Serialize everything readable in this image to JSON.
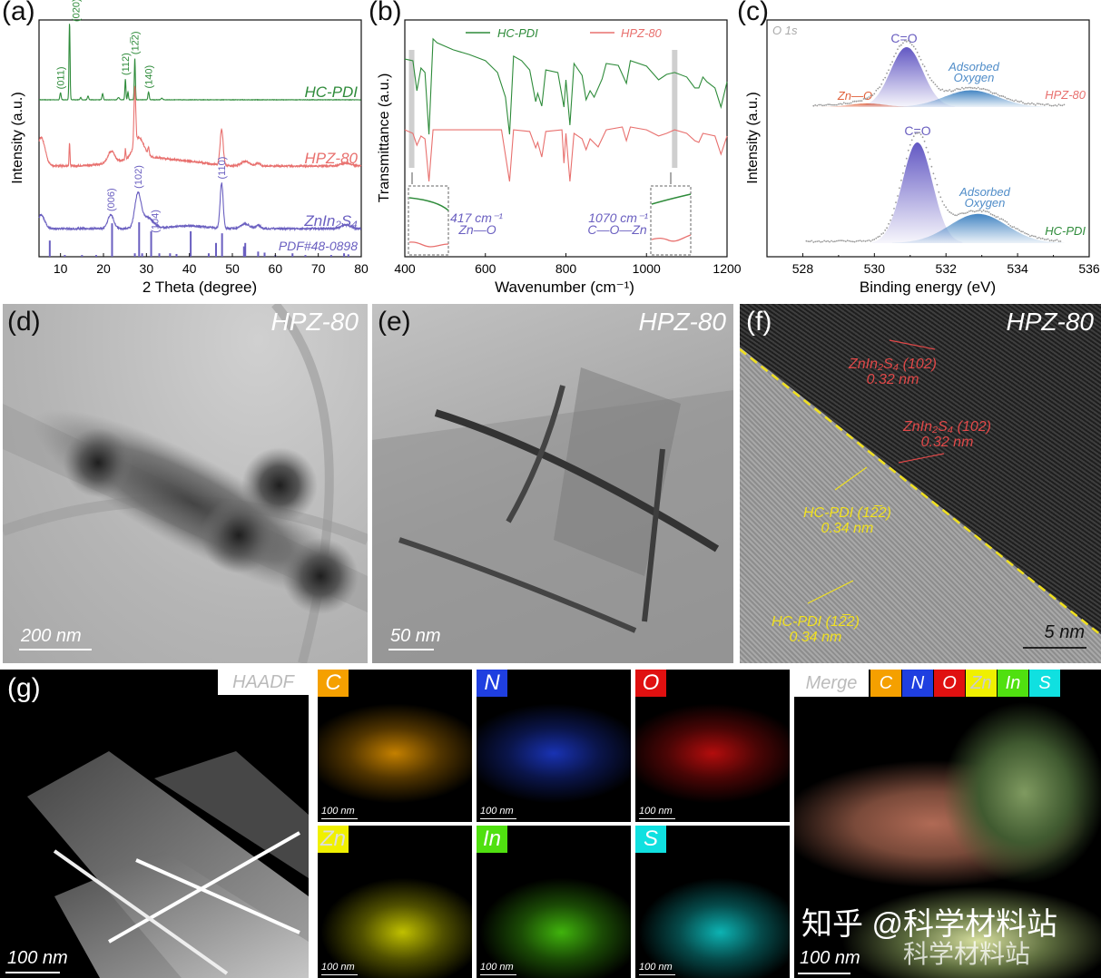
{
  "panels": {
    "a": "(a)",
    "b": "(b)",
    "c": "(c)",
    "d": "(d)",
    "e": "(e)",
    "f": "(f)",
    "g": "(g)"
  },
  "chart_data": [
    {
      "type": "line",
      "title": "",
      "xlabel": "2 Theta (degree)",
      "ylabel": "Intensity (a.u.)",
      "xlim": [
        5,
        80
      ],
      "xticks": [
        10,
        20,
        30,
        40,
        50,
        60,
        70,
        80
      ],
      "grid": false,
      "series": [
        {
          "name": "HC-PDI",
          "color": "#2e8b3a",
          "peaks": [
            [
              10,
              0.09,
              0.15
            ],
            [
              12.1,
              1,
              0.12
            ],
            [
              14.7,
              0.03,
              0.15
            ],
            [
              16.4,
              0.05,
              0.15
            ],
            [
              19.8,
              0.08,
              0.15
            ],
            [
              23.5,
              0.03,
              0.2
            ],
            [
              25.1,
              0.27,
              0.12
            ],
            [
              25.7,
              0.1,
              0.12
            ],
            [
              27.3,
              0.54,
              0.12
            ],
            [
              30.5,
              0.1,
              0.15
            ],
            [
              33.6,
              0.02,
              0.2
            ]
          ]
        },
        {
          "name": "HPZ-80",
          "color": "#e8706e",
          "peaks": [
            [
              5.5,
              0.5,
              0.9
            ],
            [
              12.1,
              0.4,
              0.1
            ],
            [
              21.8,
              0.2,
              0.8
            ],
            [
              25.1,
              0.18,
              0.1
            ],
            [
              27.3,
              1,
              0.2
            ],
            [
              28.2,
              0.35,
              1.2
            ],
            [
              30.5,
              0.12,
              0.15
            ],
            [
              30,
              0.15,
              6
            ],
            [
              41,
              0.05,
              4
            ],
            [
              47.5,
              0.63,
              0.35
            ],
            [
              53,
              0.08,
              1
            ],
            [
              56,
              0.05,
              0.5
            ],
            [
              76.5,
              0.05,
              1.2
            ]
          ]
        },
        {
          "name": "ZnIn₂S₄",
          "color": "#6a5fc0",
          "peaks": [
            [
              5.5,
              0.3,
              0.8
            ],
            [
              21.7,
              0.3,
              0.7
            ],
            [
              28,
              0.7,
              0.7
            ],
            [
              30,
              0.25,
              1.5
            ],
            [
              40,
              0.06,
              4
            ],
            [
              47.5,
              1,
              0.35
            ],
            [
              53,
              0.1,
              1
            ],
            [
              56,
              0.08,
              0.5
            ],
            [
              76.5,
              0.08,
              1
            ]
          ]
        }
      ],
      "reference": {
        "name": "PDF#48-0898",
        "color": "#6a5fc0",
        "sticks": [
          [
            7.5,
            0.47
          ],
          [
            11,
            0.05
          ],
          [
            15,
            0.05
          ],
          [
            18.3,
            0.05
          ],
          [
            22,
            0.97
          ],
          [
            27.3,
            0.1
          ],
          [
            28.3,
            1
          ],
          [
            29,
            0.1
          ],
          [
            31.1,
            0.74
          ],
          [
            33,
            0.1
          ],
          [
            35.5,
            0.1
          ],
          [
            37,
            0.08
          ],
          [
            40.3,
            0.74
          ],
          [
            44.5,
            0.1
          ],
          [
            46.2,
            0.4
          ],
          [
            47.6,
            0.68
          ],
          [
            52.7,
            0.3
          ],
          [
            53,
            0.4
          ],
          [
            56,
            0.15
          ],
          [
            57.5,
            0.12
          ],
          [
            60,
            0.05
          ],
          [
            64,
            0.1
          ],
          [
            67,
            0.05
          ],
          [
            73,
            0.05
          ],
          [
            76,
            0.1
          ],
          [
            77,
            0.07
          ]
        ]
      },
      "annotations": [
        {
          "text": "(011)",
          "x": 10,
          "series": 0
        },
        {
          "text": "(020)",
          "x": 12.1,
          "series": 0
        },
        {
          "text": "(112)",
          "x": 25.1,
          "series": 0
        },
        {
          "text": "(12̅2)",
          "x": 27.3,
          "series": 0
        },
        {
          "text": "(140)",
          "x": 30.5,
          "series": 0
        },
        {
          "text": "(006)",
          "x": 21.7,
          "series": 2
        },
        {
          "text": "(102)",
          "x": 28,
          "series": 2
        },
        {
          "text": "(104)",
          "x": 30,
          "series": 2
        },
        {
          "text": "(110)",
          "x": 47.5,
          "series": 2
        }
      ]
    },
    {
      "type": "line",
      "title": "",
      "xlabel": "Wavenumber (cm⁻¹)",
      "ylabel": "Transmittance (a.u.)",
      "xlim": [
        400,
        1200
      ],
      "ylim": [
        0,
        100
      ],
      "xticks": [
        400,
        600,
        800,
        1000,
        1200
      ],
      "grid": false,
      "legend": "top",
      "series": [
        {
          "name": "HC-PDI",
          "color": "#2e8b3a",
          "points": [
            [
              400,
              83.5
            ],
            [
              420,
              82.8
            ],
            [
              430,
              70.1
            ],
            [
              440,
              79.7
            ],
            [
              450,
              77.8
            ],
            [
              460,
              51.7
            ],
            [
              470,
              92
            ],
            [
              480,
              90.4
            ],
            [
              520,
              87.4
            ],
            [
              560,
              85.4
            ],
            [
              600,
              82.8
            ],
            [
              630,
              77.8
            ],
            [
              650,
              67.4
            ],
            [
              660,
              51.7
            ],
            [
              670,
              84.7
            ],
            [
              690,
              82.8
            ],
            [
              710,
              78.9
            ],
            [
              725,
              65.5
            ],
            [
              730,
              69
            ],
            [
              740,
              63.6
            ],
            [
              750,
              78.9
            ],
            [
              780,
              77.8
            ],
            [
              795,
              63.2
            ],
            [
              800,
              74.7
            ],
            [
              810,
              55.6
            ],
            [
              820,
              81.6
            ],
            [
              840,
              76.6
            ],
            [
              850,
              66.3
            ],
            [
              860,
              70.1
            ],
            [
              870,
              67.4
            ],
            [
              890,
              75.1
            ],
            [
              900,
              81.6
            ],
            [
              930,
              80.8
            ],
            [
              950,
              73.2
            ],
            [
              960,
              82.8
            ],
            [
              1000,
              80.5
            ],
            [
              1030,
              74.7
            ],
            [
              1050,
              77
            ],
            [
              1070,
              77.8
            ],
            [
              1100,
              75.9
            ],
            [
              1120,
              71.3
            ],
            [
              1130,
              71.3
            ],
            [
              1140,
              75.9
            ],
            [
              1150,
              73.9
            ],
            [
              1170,
              71.3
            ],
            [
              1185,
              63.2
            ],
            [
              1200,
              73.9
            ]
          ]
        },
        {
          "name": "HPZ-80",
          "color": "#e8706e",
          "points": [
            [
              400,
              53.6
            ],
            [
              420,
              52.1
            ],
            [
              430,
              47.1
            ],
            [
              440,
              51
            ],
            [
              450,
              49.8
            ],
            [
              460,
              31.8
            ],
            [
              470,
              53.6
            ],
            [
              520,
              53.6
            ],
            [
              640,
              53.6
            ],
            [
              660,
              31.8
            ],
            [
              670,
              53.6
            ],
            [
              710,
              52.9
            ],
            [
              725,
              46
            ],
            [
              730,
              48.3
            ],
            [
              740,
              42.1
            ],
            [
              750,
              52.9
            ],
            [
              790,
              53.6
            ],
            [
              795,
              39.5
            ],
            [
              800,
              52.1
            ],
            [
              810,
              31.8
            ],
            [
              820,
              52.1
            ],
            [
              840,
              49.8
            ],
            [
              850,
              45.2
            ],
            [
              860,
              49.8
            ],
            [
              880,
              46.4
            ],
            [
              900,
              53.6
            ],
            [
              940,
              54.8
            ],
            [
              950,
              49
            ],
            [
              960,
              54.8
            ],
            [
              1000,
              53.6
            ],
            [
              1030,
              51
            ],
            [
              1050,
              52.1
            ],
            [
              1070,
              53.6
            ],
            [
              1100,
              52.1
            ],
            [
              1120,
              49
            ],
            [
              1130,
              48.3
            ],
            [
              1140,
              52.1
            ],
            [
              1170,
              51
            ],
            [
              1185,
              43.3
            ],
            [
              1200,
              51
            ]
          ]
        }
      ],
      "highlights": [
        417,
        1070
      ],
      "annotations": [
        {
          "text": "417 cm⁻¹",
          "sub": "Zn—O",
          "x": 417
        },
        {
          "text": "1070 cm⁻¹",
          "sub": "C—O—Zn",
          "x": 1070
        }
      ]
    },
    {
      "type": "area",
      "title": "O 1s",
      "xlabel": "Binding energy (eV)",
      "ylabel": "Intensity (a.u.)",
      "xlim": [
        527,
        536
      ],
      "xticks": [
        528,
        530,
        532,
        534,
        536
      ],
      "grid": false,
      "series": [
        {
          "name": "HPZ-80",
          "color": "#e8706e",
          "components": [
            {
              "name": "Zn—O",
              "center": 529.8,
              "height": 0.06,
              "sigma": 0.5,
              "color": "#e0603a"
            },
            {
              "name": "C=O",
              "center": 530.9,
              "height": 1.0,
              "sigma": 0.45,
              "color": "#5a4fc0"
            },
            {
              "name": "Adsorbed Oxygen",
              "center": 532.7,
              "height": 0.28,
              "sigma": 0.75,
              "color": "#3a7fc0"
            }
          ]
        },
        {
          "name": "HC-PDI",
          "color": "#2e8b3a",
          "components": [
            {
              "name": "C=O",
              "center": 531.2,
              "height": 1.0,
              "sigma": 0.42,
              "color": "#5a4fc0"
            },
            {
              "name": "Adsorbed Oxygen",
              "center": 532.9,
              "height": 0.29,
              "sigma": 0.8,
              "color": "#3a7fc0"
            }
          ]
        }
      ],
      "labels": {
        "co": "C=O",
        "ads1": "Adsorbed",
        "ads2": "Oxygen",
        "zno": "Zn—O"
      }
    }
  ],
  "images": {
    "d": {
      "sample": "HPZ-80",
      "scale": "200 nm"
    },
    "e": {
      "sample": "HPZ-80",
      "scale": "50 nm"
    },
    "f": {
      "sample": "HPZ-80",
      "scale": "5 nm",
      "fringes": [
        {
          "title": "ZnIn₂S₄ (102)",
          "spacing": "0.32 nm",
          "color": "#e04848"
        },
        {
          "title": "ZnIn₂S₄ (102)",
          "spacing": "0.32 nm",
          "color": "#e04848"
        },
        {
          "title": "HC-PDI (12̅2)",
          "spacing": "0.34 nm",
          "color": "#f0e020"
        },
        {
          "title": "HC-PDI (12̅2)",
          "spacing": "0.34 nm",
          "color": "#f0e020"
        }
      ]
    },
    "g": {
      "haadf": {
        "label": "HAADF",
        "scale": "100 nm"
      },
      "maps": [
        {
          "element": "C",
          "color": "#f5a000",
          "scale": "100 nm"
        },
        {
          "element": "N",
          "color": "#1f3fe0",
          "scale": "100 nm"
        },
        {
          "element": "O",
          "color": "#e01010",
          "scale": "100 nm"
        },
        {
          "element": "Zn",
          "color": "#f0f000",
          "scale": "100 nm"
        },
        {
          "element": "In",
          "color": "#50e010",
          "scale": "100 nm"
        },
        {
          "element": "S",
          "color": "#10e0e0",
          "scale": "100 nm"
        }
      ],
      "merge": {
        "label": "Merge",
        "scale": "100 nm"
      }
    }
  },
  "watermark": {
    "line1": "知乎 @科学材料站",
    "line2": "科学材料站"
  }
}
